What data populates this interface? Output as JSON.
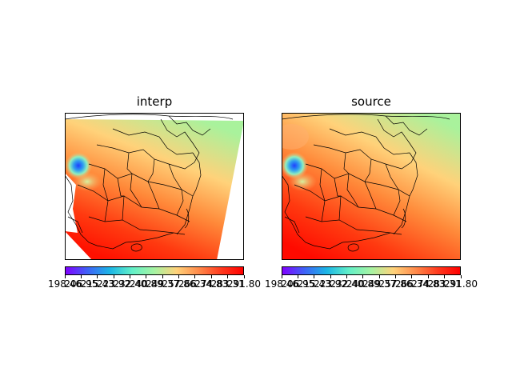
{
  "panels": [
    {
      "id": "interp",
      "title": "interp"
    },
    {
      "id": "source",
      "title": "source"
    }
  ],
  "colorbar": {
    "colormap": "rainbow",
    "stops": [
      "#7f00ff",
      "#3e63f7",
      "#1bb6e6",
      "#62f0c8",
      "#a6f3a2",
      "#ffd27a",
      "#ff8a4a",
      "#ff3a1e",
      "#ff0000"
    ],
    "tick_labels": [
      "198.46",
      "206.95",
      "215.43",
      "223.92",
      "232.40",
      "240.89",
      "249.37",
      "257.86",
      "266.34",
      "274.83",
      "283.31",
      "291.80"
    ],
    "end_label": "291.80"
  },
  "colors": {
    "cold": "#1f3fff",
    "land_warm": "#ff2000",
    "north": "#a9f29c",
    "border": "#000000"
  }
}
